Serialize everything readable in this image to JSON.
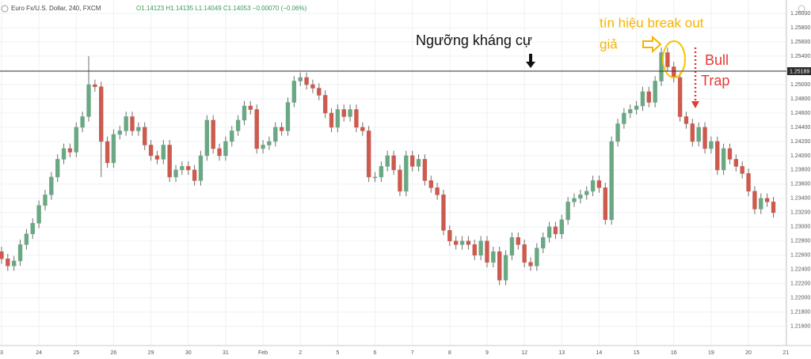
{
  "chart_data": {
    "type": "candlestick",
    "title": "Euro Fx/U.S. Dollar, 240, FXCM",
    "ohlc_header": "O1.14123 H1.14135 L1.14049 C1.14053 −0.00070 (−0.06%)",
    "annotations": [
      "Ngưỡng kháng cự",
      "tín hiệu break out",
      "giả",
      "Bull",
      "Trap"
    ],
    "resistance": 1.25189,
    "up_color": "#6aa884",
    "down_color": "#cc5a4e",
    "wick_color": "#6f6f6f",
    "grid": true,
    "x": [
      0,
      1,
      2,
      3,
      4,
      5,
      6,
      7,
      8,
      9,
      10,
      11,
      12,
      13,
      14,
      15,
      16,
      17,
      18,
      19,
      20,
      21,
      22,
      23,
      24,
      25,
      26,
      27,
      28,
      29,
      30,
      31,
      32,
      33,
      34,
      35,
      36,
      37,
      38,
      39,
      40,
      41,
      42,
      43,
      44,
      45,
      46,
      47,
      48,
      49,
      50,
      51,
      52,
      53,
      54,
      55,
      56,
      57,
      58,
      59,
      60,
      61,
      62,
      63,
      64,
      65,
      66,
      67,
      68,
      69,
      70,
      71,
      72,
      73,
      74,
      75,
      76,
      77,
      78,
      79,
      80,
      81,
      82,
      83,
      84,
      85,
      86,
      87,
      88,
      89,
      90,
      91,
      92,
      93,
      94,
      95,
      96,
      97,
      98,
      99,
      100,
      101,
      102,
      103,
      104,
      105,
      106,
      107,
      108,
      109,
      110,
      111,
      112,
      113,
      114,
      115,
      116,
      117,
      118,
      119,
      120,
      121,
      122,
      123,
      124
    ],
    "open": [
      1.2265,
      1.2255,
      1.2245,
      1.2252,
      1.2275,
      1.229,
      1.2305,
      1.233,
      1.2345,
      1.237,
      1.2395,
      1.241,
      1.2405,
      1.244,
      1.2455,
      1.25,
      1.2497,
      1.242,
      1.239,
      1.243,
      1.2435,
      1.2455,
      1.2435,
      1.244,
      1.2415,
      1.24,
      1.2395,
      1.2415,
      1.237,
      1.238,
      1.2385,
      1.238,
      1.2365,
      1.24,
      1.245,
      1.241,
      1.24,
      1.242,
      1.2435,
      1.245,
      1.247,
      1.2465,
      1.241,
      1.2415,
      1.242,
      1.244,
      1.2435,
      1.2475,
      1.2505,
      1.251,
      1.25,
      1.2495,
      1.2485,
      1.246,
      1.244,
      1.2465,
      1.2455,
      1.2465,
      1.244,
      1.2435,
      1.237,
      1.237,
      1.2385,
      1.24,
      1.238,
      1.235,
      1.24,
      1.2385,
      1.2395,
      1.2365,
      1.2355,
      1.2345,
      1.2295,
      1.228,
      1.2275,
      1.228,
      1.2275,
      1.226,
      1.228,
      1.225,
      1.2265,
      1.2225,
      1.226,
      1.2285,
      1.2275,
      1.225,
      1.2245,
      1.227,
      1.2285,
      1.23,
      1.229,
      1.231,
      1.2335,
      1.234,
      1.2345,
      1.235,
      1.2365,
      1.2355,
      1.231,
      1.242,
      1.2445,
      1.246,
      1.2465,
      1.247,
      1.249,
      1.2475,
      1.2505,
      1.2545,
      1.2525,
      1.251,
      1.2455,
      1.2445,
      1.242,
      1.244,
      1.241,
      1.242,
      1.238,
      1.241,
      1.2395,
      1.2385,
      1.2375,
      1.235,
      1.2325,
      1.234,
      1.2335
    ],
    "high": [
      1.2272,
      1.2262,
      1.2259,
      1.2282,
      1.2297,
      1.2312,
      1.2337,
      1.2352,
      1.2377,
      1.2402,
      1.2417,
      1.2417,
      1.2447,
      1.2462,
      1.254,
      1.2507,
      1.2504,
      1.2427,
      1.2437,
      1.2442,
      1.2462,
      1.2462,
      1.2447,
      1.2447,
      1.2422,
      1.2407,
      1.2422,
      1.2422,
      1.2387,
      1.2392,
      1.2392,
      1.2387,
      1.2407,
      1.2457,
      1.2457,
      1.2417,
      1.2427,
      1.2442,
      1.2457,
      1.2477,
      1.2477,
      1.2472,
      1.2422,
      1.2427,
      1.2447,
      1.2447,
      1.2482,
      1.2512,
      1.2517,
      1.2517,
      1.2507,
      1.2502,
      1.2492,
      1.2467,
      1.2472,
      1.2472,
      1.2472,
      1.2472,
      1.2447,
      1.2442,
      1.2377,
      1.2392,
      1.2407,
      1.2407,
      1.2387,
      1.2407,
      1.2407,
      1.2402,
      1.2402,
      1.2372,
      1.2362,
      1.2352,
      1.2302,
      1.2287,
      1.2287,
      1.2287,
      1.2282,
      1.2287,
      1.2287,
      1.2272,
      1.2272,
      1.2267,
      1.2292,
      1.2292,
      1.2282,
      1.2257,
      1.2277,
      1.2292,
      1.2307,
      1.2307,
      1.2317,
      1.2342,
      1.2347,
      1.2352,
      1.2357,
      1.2372,
      1.2372,
      1.2362,
      1.2427,
      1.2452,
      1.2467,
      1.2472,
      1.2477,
      1.2497,
      1.2497,
      1.2512,
      1.2552,
      1.2552,
      1.2532,
      1.2517,
      1.2462,
      1.2452,
      1.2447,
      1.2447,
      1.2427,
      1.2427,
      1.2417,
      1.2417,
      1.2402,
      1.2392,
      1.2382,
      1.2357,
      1.2347,
      1.2347,
      1.2342
    ],
    "low": [
      1.2248,
      1.2238,
      1.2238,
      1.2245,
      1.2268,
      1.2283,
      1.2298,
      1.2323,
      1.2338,
      1.2363,
      1.2388,
      1.2398,
      1.2398,
      1.2433,
      1.2448,
      1.249,
      1.237,
      1.2383,
      1.2383,
      1.2423,
      1.2428,
      1.2428,
      1.2428,
      1.2408,
      1.2393,
      1.2388,
      1.2388,
      1.2363,
      1.2363,
      1.2373,
      1.2373,
      1.2358,
      1.2358,
      1.2393,
      1.2403,
      1.2393,
      1.2393,
      1.2413,
      1.2428,
      1.2443,
      1.2458,
      1.2403,
      1.2403,
      1.2408,
      1.2413,
      1.2428,
      1.2428,
      1.2468,
      1.2498,
      1.2493,
      1.2488,
      1.2478,
      1.2453,
      1.2433,
      1.2433,
      1.2448,
      1.2448,
      1.2433,
      1.2428,
      1.2363,
      1.2363,
      1.2363,
      1.2378,
      1.2373,
      1.2343,
      1.2343,
      1.2378,
      1.2378,
      1.2358,
      1.2348,
      1.2338,
      1.2288,
      1.2273,
      1.2268,
      1.2268,
      1.2268,
      1.2253,
      1.2253,
      1.2243,
      1.2243,
      1.2218,
      1.2218,
      1.2253,
      1.2268,
      1.2243,
      1.2238,
      1.2238,
      1.2263,
      1.2278,
      1.2283,
      1.2283,
      1.2303,
      1.2328,
      1.2333,
      1.2338,
      1.2343,
      1.2348,
      1.2303,
      1.2303,
      1.2413,
      1.2438,
      1.2453,
      1.2458,
      1.2463,
      1.2468,
      1.2468,
      1.2498,
      1.2518,
      1.2503,
      1.2448,
      1.2438,
      1.2413,
      1.2413,
      1.2403,
      1.2403,
      1.2373,
      1.2373,
      1.2388,
      1.2378,
      1.2368,
      1.2343,
      1.2318,
      1.2318,
      1.2328,
      1.2313
    ],
    "close": [
      1.2255,
      1.2245,
      1.2252,
      1.2275,
      1.229,
      1.2305,
      1.233,
      1.2345,
      1.237,
      1.2395,
      1.241,
      1.2405,
      1.244,
      1.2455,
      1.25,
      1.2497,
      1.242,
      1.239,
      1.243,
      1.2435,
      1.2455,
      1.2435,
      1.244,
      1.2415,
      1.24,
      1.2395,
      1.2415,
      1.237,
      1.238,
      1.2385,
      1.238,
      1.2365,
      1.24,
      1.245,
      1.241,
      1.24,
      1.242,
      1.2435,
      1.245,
      1.247,
      1.2465,
      1.241,
      1.2415,
      1.242,
      1.244,
      1.2435,
      1.2475,
      1.2505,
      1.251,
      1.25,
      1.2495,
      1.2485,
      1.246,
      1.244,
      1.2465,
      1.2455,
      1.2465,
      1.244,
      1.2435,
      1.237,
      1.237,
      1.2385,
      1.24,
      1.238,
      1.235,
      1.24,
      1.2385,
      1.2395,
      1.2365,
      1.2355,
      1.2345,
      1.2295,
      1.228,
      1.2275,
      1.228,
      1.2275,
      1.226,
      1.228,
      1.225,
      1.2265,
      1.2225,
      1.226,
      1.2285,
      1.2275,
      1.225,
      1.2245,
      1.227,
      1.2285,
      1.23,
      1.229,
      1.231,
      1.2335,
      1.234,
      1.2345,
      1.235,
      1.2365,
      1.2355,
      1.231,
      1.242,
      1.2445,
      1.246,
      1.2465,
      1.247,
      1.249,
      1.2475,
      1.2505,
      1.2545,
      1.2525,
      1.251,
      1.2455,
      1.2445,
      1.242,
      1.244,
      1.241,
      1.242,
      1.238,
      1.241,
      1.2395,
      1.2385,
      1.2375,
      1.235,
      1.2325,
      1.234,
      1.2335,
      1.232
    ],
    "xlim": [
      -0.25,
      126.1
    ],
    "xticks": [
      {
        "value": 0,
        "label": "3"
      },
      {
        "value": 6,
        "label": "24"
      },
      {
        "value": 12,
        "label": "25"
      },
      {
        "value": 18,
        "label": "26"
      },
      {
        "value": 24,
        "label": "29"
      },
      {
        "value": 30,
        "label": "30"
      },
      {
        "value": 36,
        "label": "31"
      },
      {
        "value": 42,
        "label": "Feb"
      },
      {
        "value": 48,
        "label": "2"
      },
      {
        "value": 54,
        "label": "5"
      },
      {
        "value": 60,
        "label": "6"
      },
      {
        "value": 66,
        "label": "7"
      },
      {
        "value": 72,
        "label": "8"
      },
      {
        "value": 78,
        "label": "9"
      },
      {
        "value": 84,
        "label": "12"
      },
      {
        "value": 90,
        "label": "13"
      },
      {
        "value": 96,
        "label": "14"
      },
      {
        "value": 102,
        "label": "15"
      },
      {
        "value": 108,
        "label": "16"
      },
      {
        "value": 114,
        "label": "19"
      },
      {
        "value": 120,
        "label": "20"
      },
      {
        "value": 126,
        "label": "21"
      }
    ],
    "ylim": [
      1.2133,
      1.2619
    ],
    "yticks": [
      {
        "value": 1.216,
        "label": "1.21600"
      },
      {
        "value": 1.218,
        "label": "1.21800"
      },
      {
        "value": 1.22,
        "label": "1.22000"
      },
      {
        "value": 1.222,
        "label": "1.22200"
      },
      {
        "value": 1.224,
        "label": "1.22400"
      },
      {
        "value": 1.226,
        "label": "1.22600"
      },
      {
        "value": 1.228,
        "label": "1.22800"
      },
      {
        "value": 1.23,
        "label": "1.23000"
      },
      {
        "value": 1.232,
        "label": "1.23200"
      },
      {
        "value": 1.234,
        "label": "1.23400"
      },
      {
        "value": 1.236,
        "label": "1.23600"
      },
      {
        "value": 1.238,
        "label": "1.23800"
      },
      {
        "value": 1.24,
        "label": "1.24000"
      },
      {
        "value": 1.242,
        "label": "1.24200"
      },
      {
        "value": 1.244,
        "label": "1.24400"
      },
      {
        "value": 1.246,
        "label": "1.24600"
      },
      {
        "value": 1.248,
        "label": "1.24800"
      },
      {
        "value": 1.25,
        "label": "1.25000"
      },
      {
        "value": 1.252,
        "label": "1.25200"
      },
      {
        "value": 1.254,
        "label": "1.25400"
      },
      {
        "value": 1.256,
        "label": "1.25600"
      },
      {
        "value": 1.258,
        "label": "1.25800"
      },
      {
        "value": 1.26,
        "label": "1.26000"
      }
    ]
  }
}
